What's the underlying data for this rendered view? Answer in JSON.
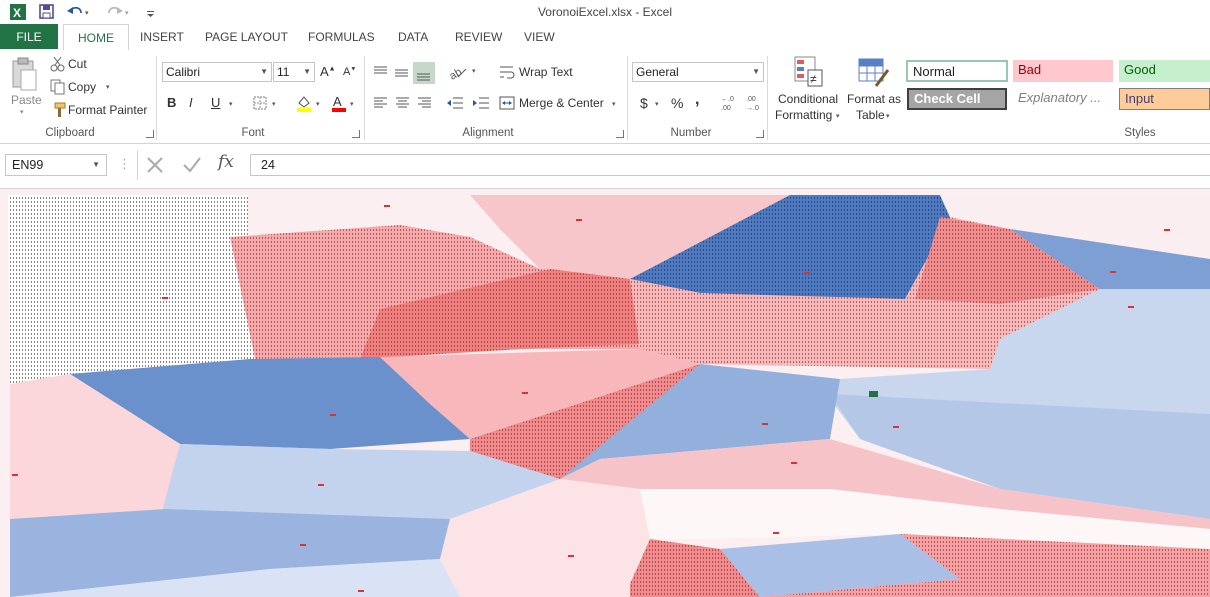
{
  "window": {
    "title": "VoronoiExcel.xlsx - Excel"
  },
  "quick_access": {
    "icons": [
      "excel-logo-icon",
      "save-icon",
      "undo-icon",
      "redo-icon",
      "customize-icon"
    ]
  },
  "tabs": [
    {
      "label": "FILE"
    },
    {
      "label": "HOME"
    },
    {
      "label": "INSERT"
    },
    {
      "label": "PAGE LAYOUT"
    },
    {
      "label": "FORMULAS"
    },
    {
      "label": "DATA"
    },
    {
      "label": "REVIEW"
    },
    {
      "label": "VIEW"
    }
  ],
  "ribbon": {
    "clipboard": {
      "label": "Clipboard",
      "paste": "Paste",
      "cut": "Cut",
      "copy": "Copy",
      "format_painter": "Format Painter"
    },
    "font": {
      "label": "Font",
      "name": "Calibri",
      "size": "11",
      "bold": "B",
      "italic": "I",
      "underline": "U"
    },
    "alignment": {
      "label": "Alignment",
      "wrap_text": "Wrap Text",
      "merge_center": "Merge & Center"
    },
    "number": {
      "label": "Number",
      "format": "General",
      "currency": "$",
      "percent": "%",
      "comma": ","
    },
    "styles": {
      "label": "Styles",
      "conditional_1": "Conditional",
      "conditional_2": "Formatting",
      "format_table_1": "Format as",
      "format_table_2": "Table",
      "cells": [
        {
          "label": "Normal"
        },
        {
          "label": "Bad"
        },
        {
          "label": "Good"
        },
        {
          "label": "Check Cell"
        },
        {
          "label": "Explanatory ..."
        },
        {
          "label": "Input"
        }
      ],
      "colors": {
        "bad_bg": "#ffc7ce",
        "bad_fg": "#9c0006",
        "good_bg": "#c6efce",
        "good_fg": "#006100",
        "input_bg": "#ffcc99",
        "input_fg": "#3f3f76",
        "check_bg": "#a5a5a5"
      }
    }
  },
  "formula_bar": {
    "name_box": "EN99",
    "formula": "24"
  },
  "palette": {
    "accent": "#217346",
    "deep_blue": "#5e87c4",
    "deep_red": "#f07a7a"
  }
}
